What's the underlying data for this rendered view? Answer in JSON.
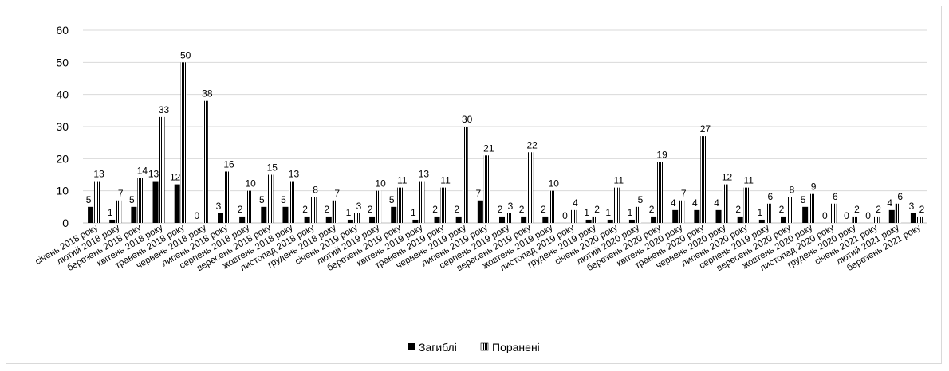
{
  "chart_data": {
    "type": "bar",
    "title": "",
    "xlabel": "",
    "ylabel": "",
    "ylim": [
      0,
      60
    ],
    "yticks": [
      0,
      10,
      20,
      30,
      40,
      50,
      60
    ],
    "grid": true,
    "legend_position": "bottom",
    "categories": [
      "січень 2018 року",
      "лютий 2018 року",
      "березень 2018 року",
      "квітень 2018 року",
      "травень 2018 року",
      "червень 2018 року",
      "липень 2018 року",
      "серпень 2018 року",
      "вересень 2018 року",
      "жовтень 2018 року",
      "листопад 2018 року",
      "грудень 2018 року",
      "січень 2019 року",
      "лютий 2019 року",
      "березень 2019 року",
      "квітень 2019 року",
      "травень 2019 року",
      "червень 2019 року",
      "липень 2019 року",
      "серпень 2019 року",
      "вересень 2019 року",
      "жовтень 2019 року",
      "листопад 2019 року",
      "грудень 2019 року",
      "січень 2020 року",
      "лютий 2020 року",
      "березень 2020 року",
      "квітень 2020 року",
      "травень 2020 року",
      "червень 2020 року",
      "липень 2020 року",
      "серпень 2019 року",
      "вересень 2020 року",
      "жовтень 2020 року",
      "листопад 2020 року",
      "грудень 2020 року",
      "січень 2021 року",
      "лютий 2021 року",
      "березень 2021 року"
    ],
    "series": [
      {
        "name": "Загиблі",
        "color": "#000000",
        "pattern": "solid",
        "values": [
          5,
          1,
          5,
          13,
          12,
          0,
          3,
          2,
          5,
          5,
          2,
          2,
          1,
          2,
          5,
          1,
          2,
          2,
          7,
          2,
          2,
          2,
          0,
          1,
          1,
          1,
          2,
          4,
          4,
          4,
          2,
          1,
          2,
          5,
          0,
          0,
          0,
          4,
          3
        ]
      },
      {
        "name": "Поранені",
        "color": "#000000",
        "pattern": "vertical-lines",
        "values": [
          13,
          7,
          14,
          33,
          50,
          38,
          16,
          10,
          15,
          13,
          8,
          7,
          3,
          10,
          11,
          13,
          11,
          30,
          21,
          3,
          22,
          10,
          4,
          2,
          11,
          5,
          19,
          7,
          27,
          12,
          11,
          6,
          8,
          9,
          6,
          2,
          2,
          6,
          2
        ]
      }
    ]
  }
}
